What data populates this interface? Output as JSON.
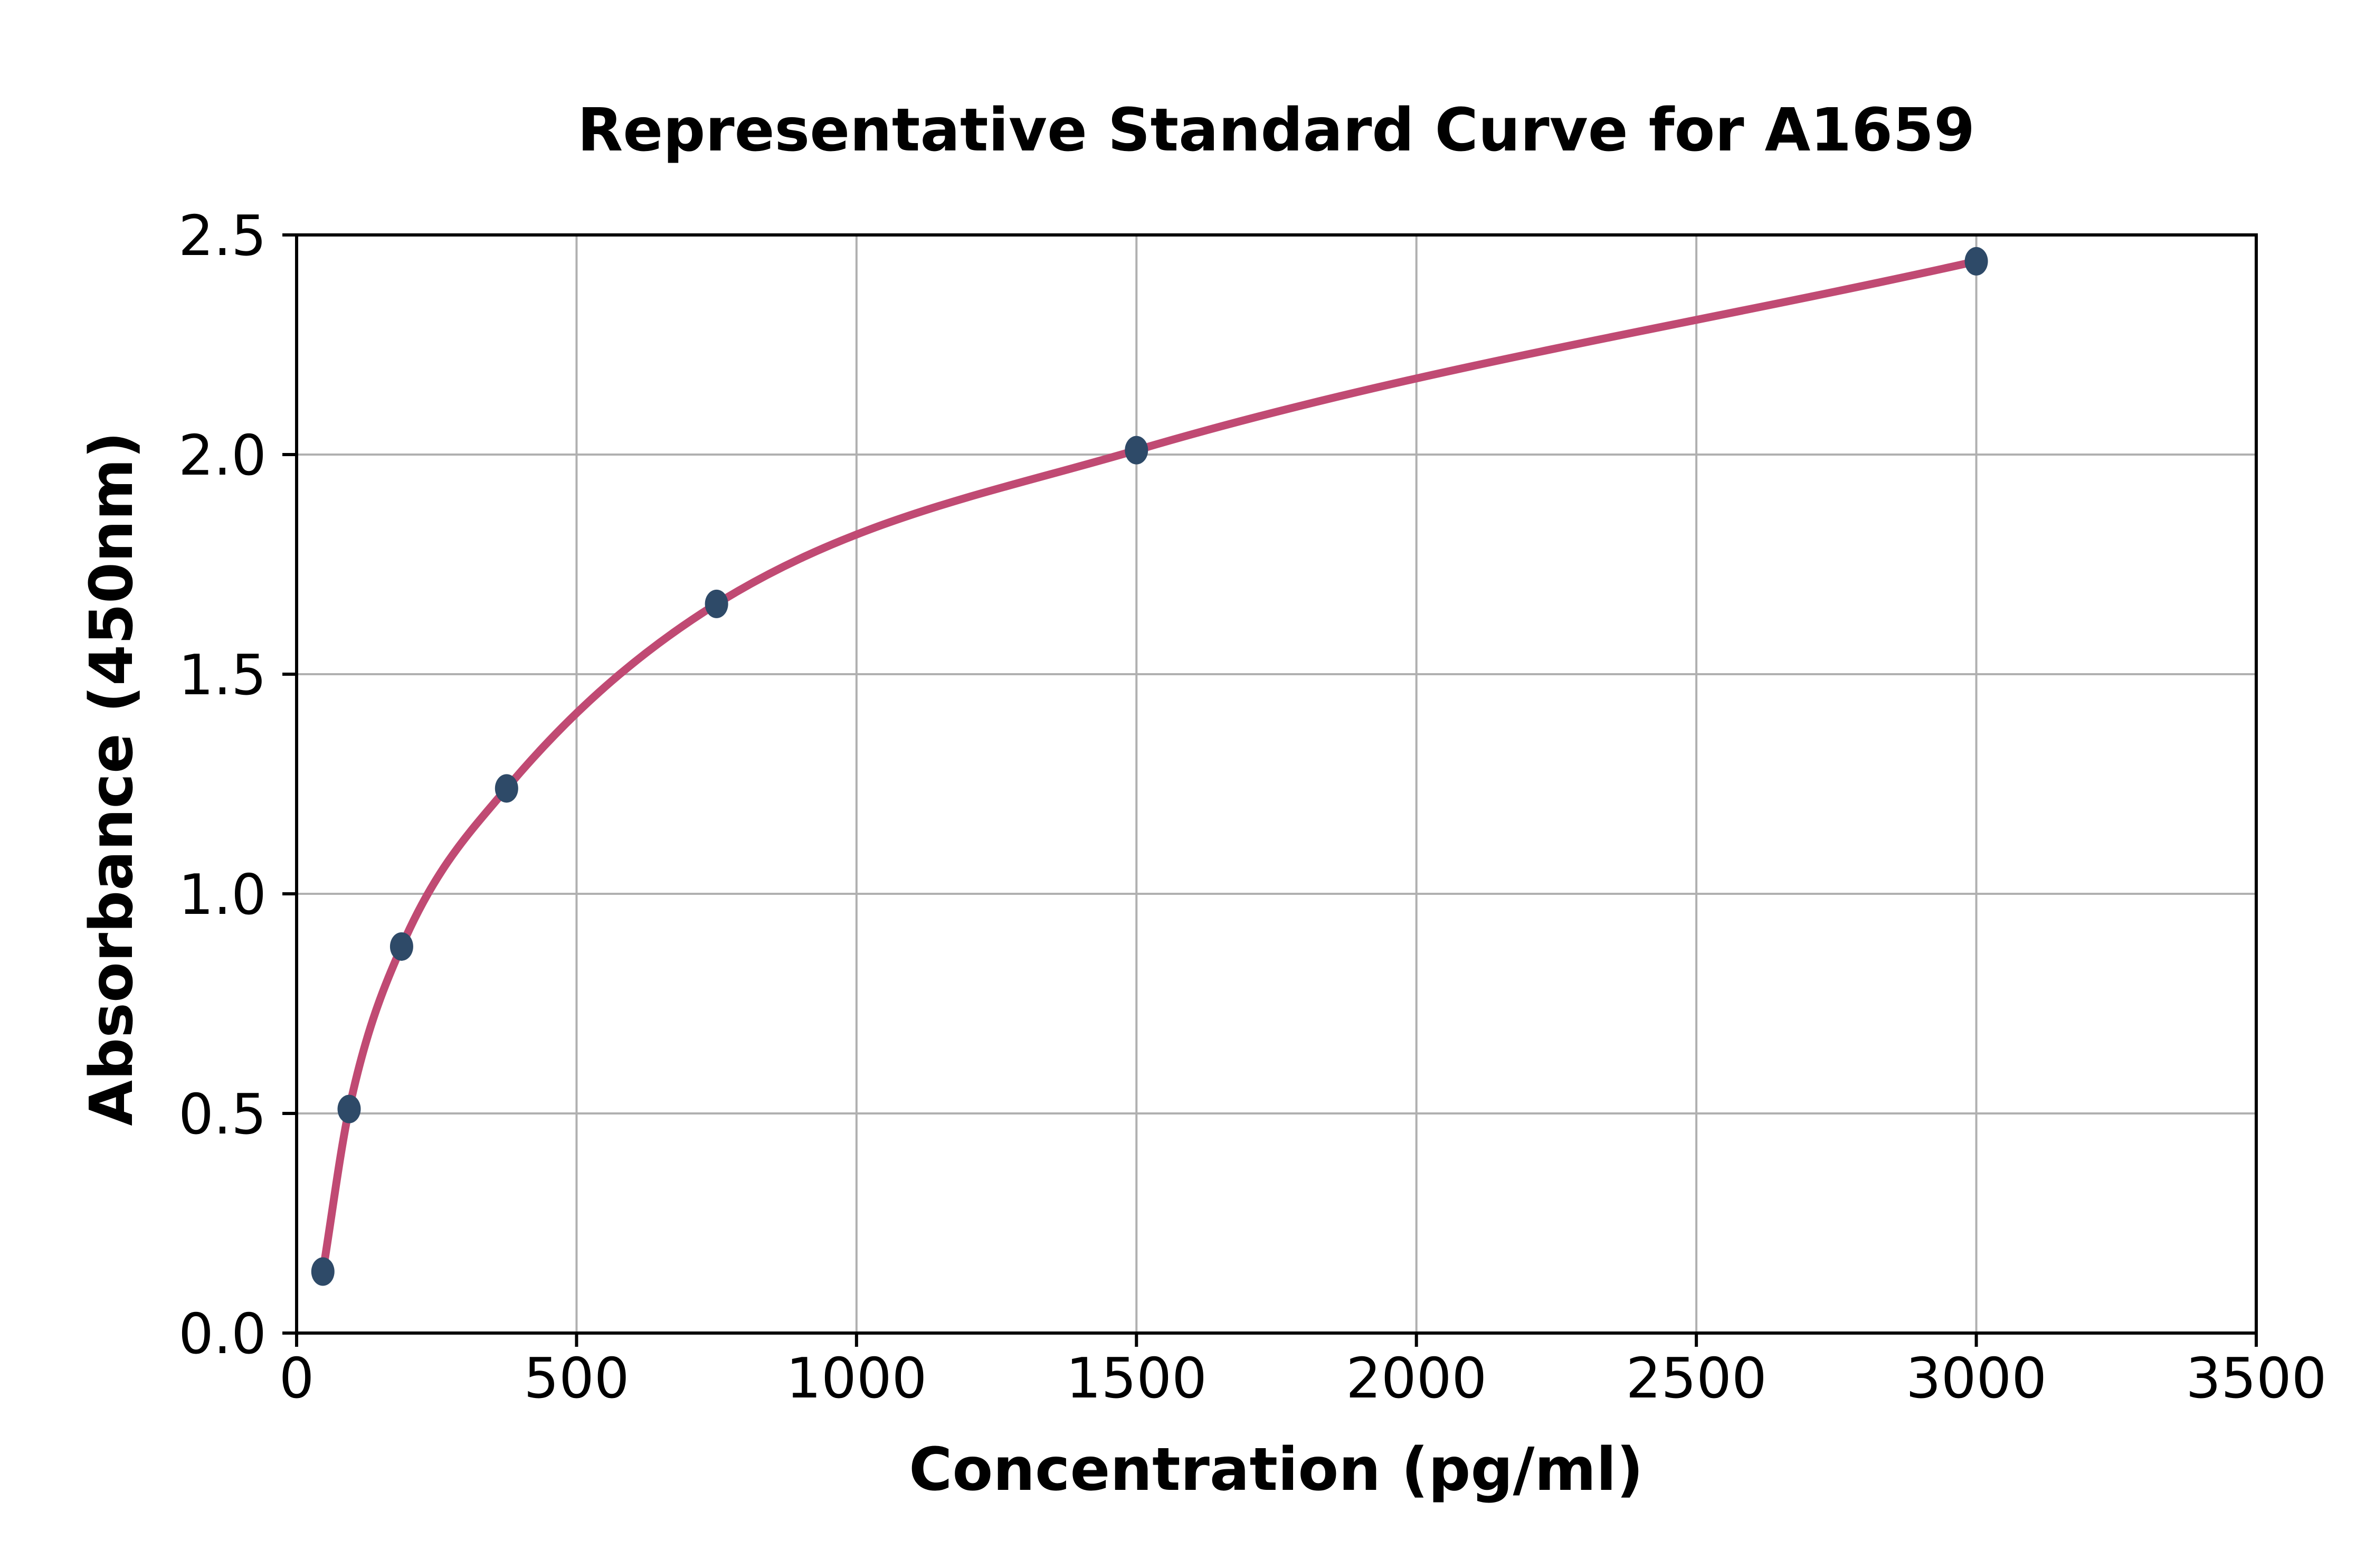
{
  "page": {
    "background": "#ffffff"
  },
  "chart_data": {
    "type": "scatter",
    "title": "Representative Standard Curve for A1659",
    "xlabel": "Concentration (pg/ml)",
    "ylabel": "Absorbance (450nm)",
    "xlim": [
      0,
      3500
    ],
    "ylim": [
      0.0,
      2.5
    ],
    "xticks": [
      0,
      500,
      1000,
      1500,
      2000,
      2500,
      3000,
      3500
    ],
    "xtick_labels": [
      "0",
      "500",
      "1000",
      "1500",
      "2000",
      "2500",
      "3000",
      "3500"
    ],
    "yticks": [
      0.0,
      0.5,
      1.0,
      1.5,
      2.0,
      2.5
    ],
    "ytick_labels": [
      "0.0",
      "0.5",
      "1.0",
      "1.5",
      "2.0",
      "2.5"
    ],
    "grid": true,
    "legend": "none",
    "series": [
      {
        "name": "standard-points-with-fit-curve",
        "x": [
          46.9,
          93.8,
          187.5,
          375,
          750,
          1500,
          3000
        ],
        "y": [
          0.14,
          0.51,
          0.88,
          1.24,
          1.66,
          2.01,
          2.44
        ],
        "marker_color": "#2e4a68",
        "line_color": "#c04a73"
      }
    ],
    "grid_color": "#b0b0b0",
    "axis_color": "#000000",
    "text_color": "#000000"
  }
}
